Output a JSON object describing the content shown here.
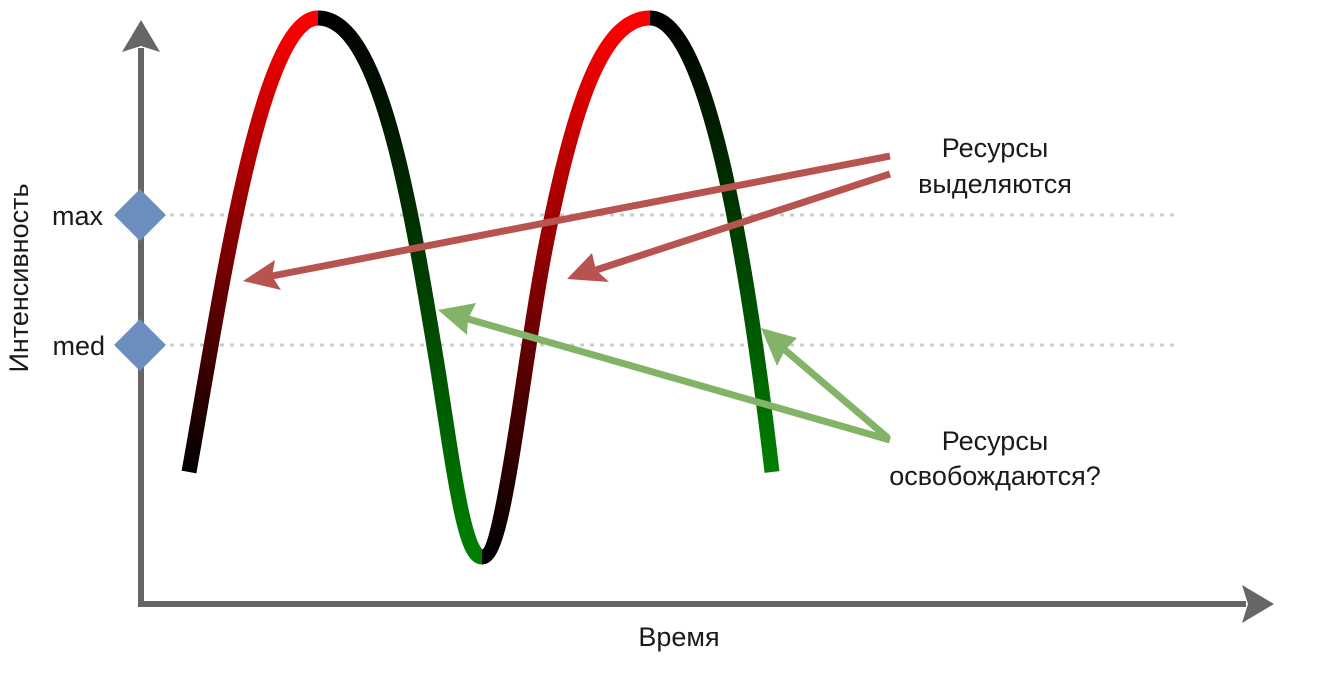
{
  "axes": {
    "x_label": "Время",
    "y_label": "Интенсивность"
  },
  "levels": [
    {
      "label": "max",
      "marker_color": "#6c8ebf"
    },
    {
      "label": "med",
      "marker_color": "#6c8ebf"
    }
  ],
  "annotations": {
    "allocated": {
      "lines": [
        "Ресурсы",
        "выделяются"
      ],
      "arrow_color": "#b85450"
    },
    "released": {
      "lines": [
        "Ресурсы",
        "освобождаются?"
      ],
      "arrow_color": "#82b366"
    }
  },
  "curve": {
    "rising_colors": [
      "#000000",
      "#ff0000"
    ],
    "falling_colors": [
      "#000000",
      "#008000"
    ]
  },
  "colors": {
    "axis": "#666666",
    "guide_line": "#cccccc"
  }
}
